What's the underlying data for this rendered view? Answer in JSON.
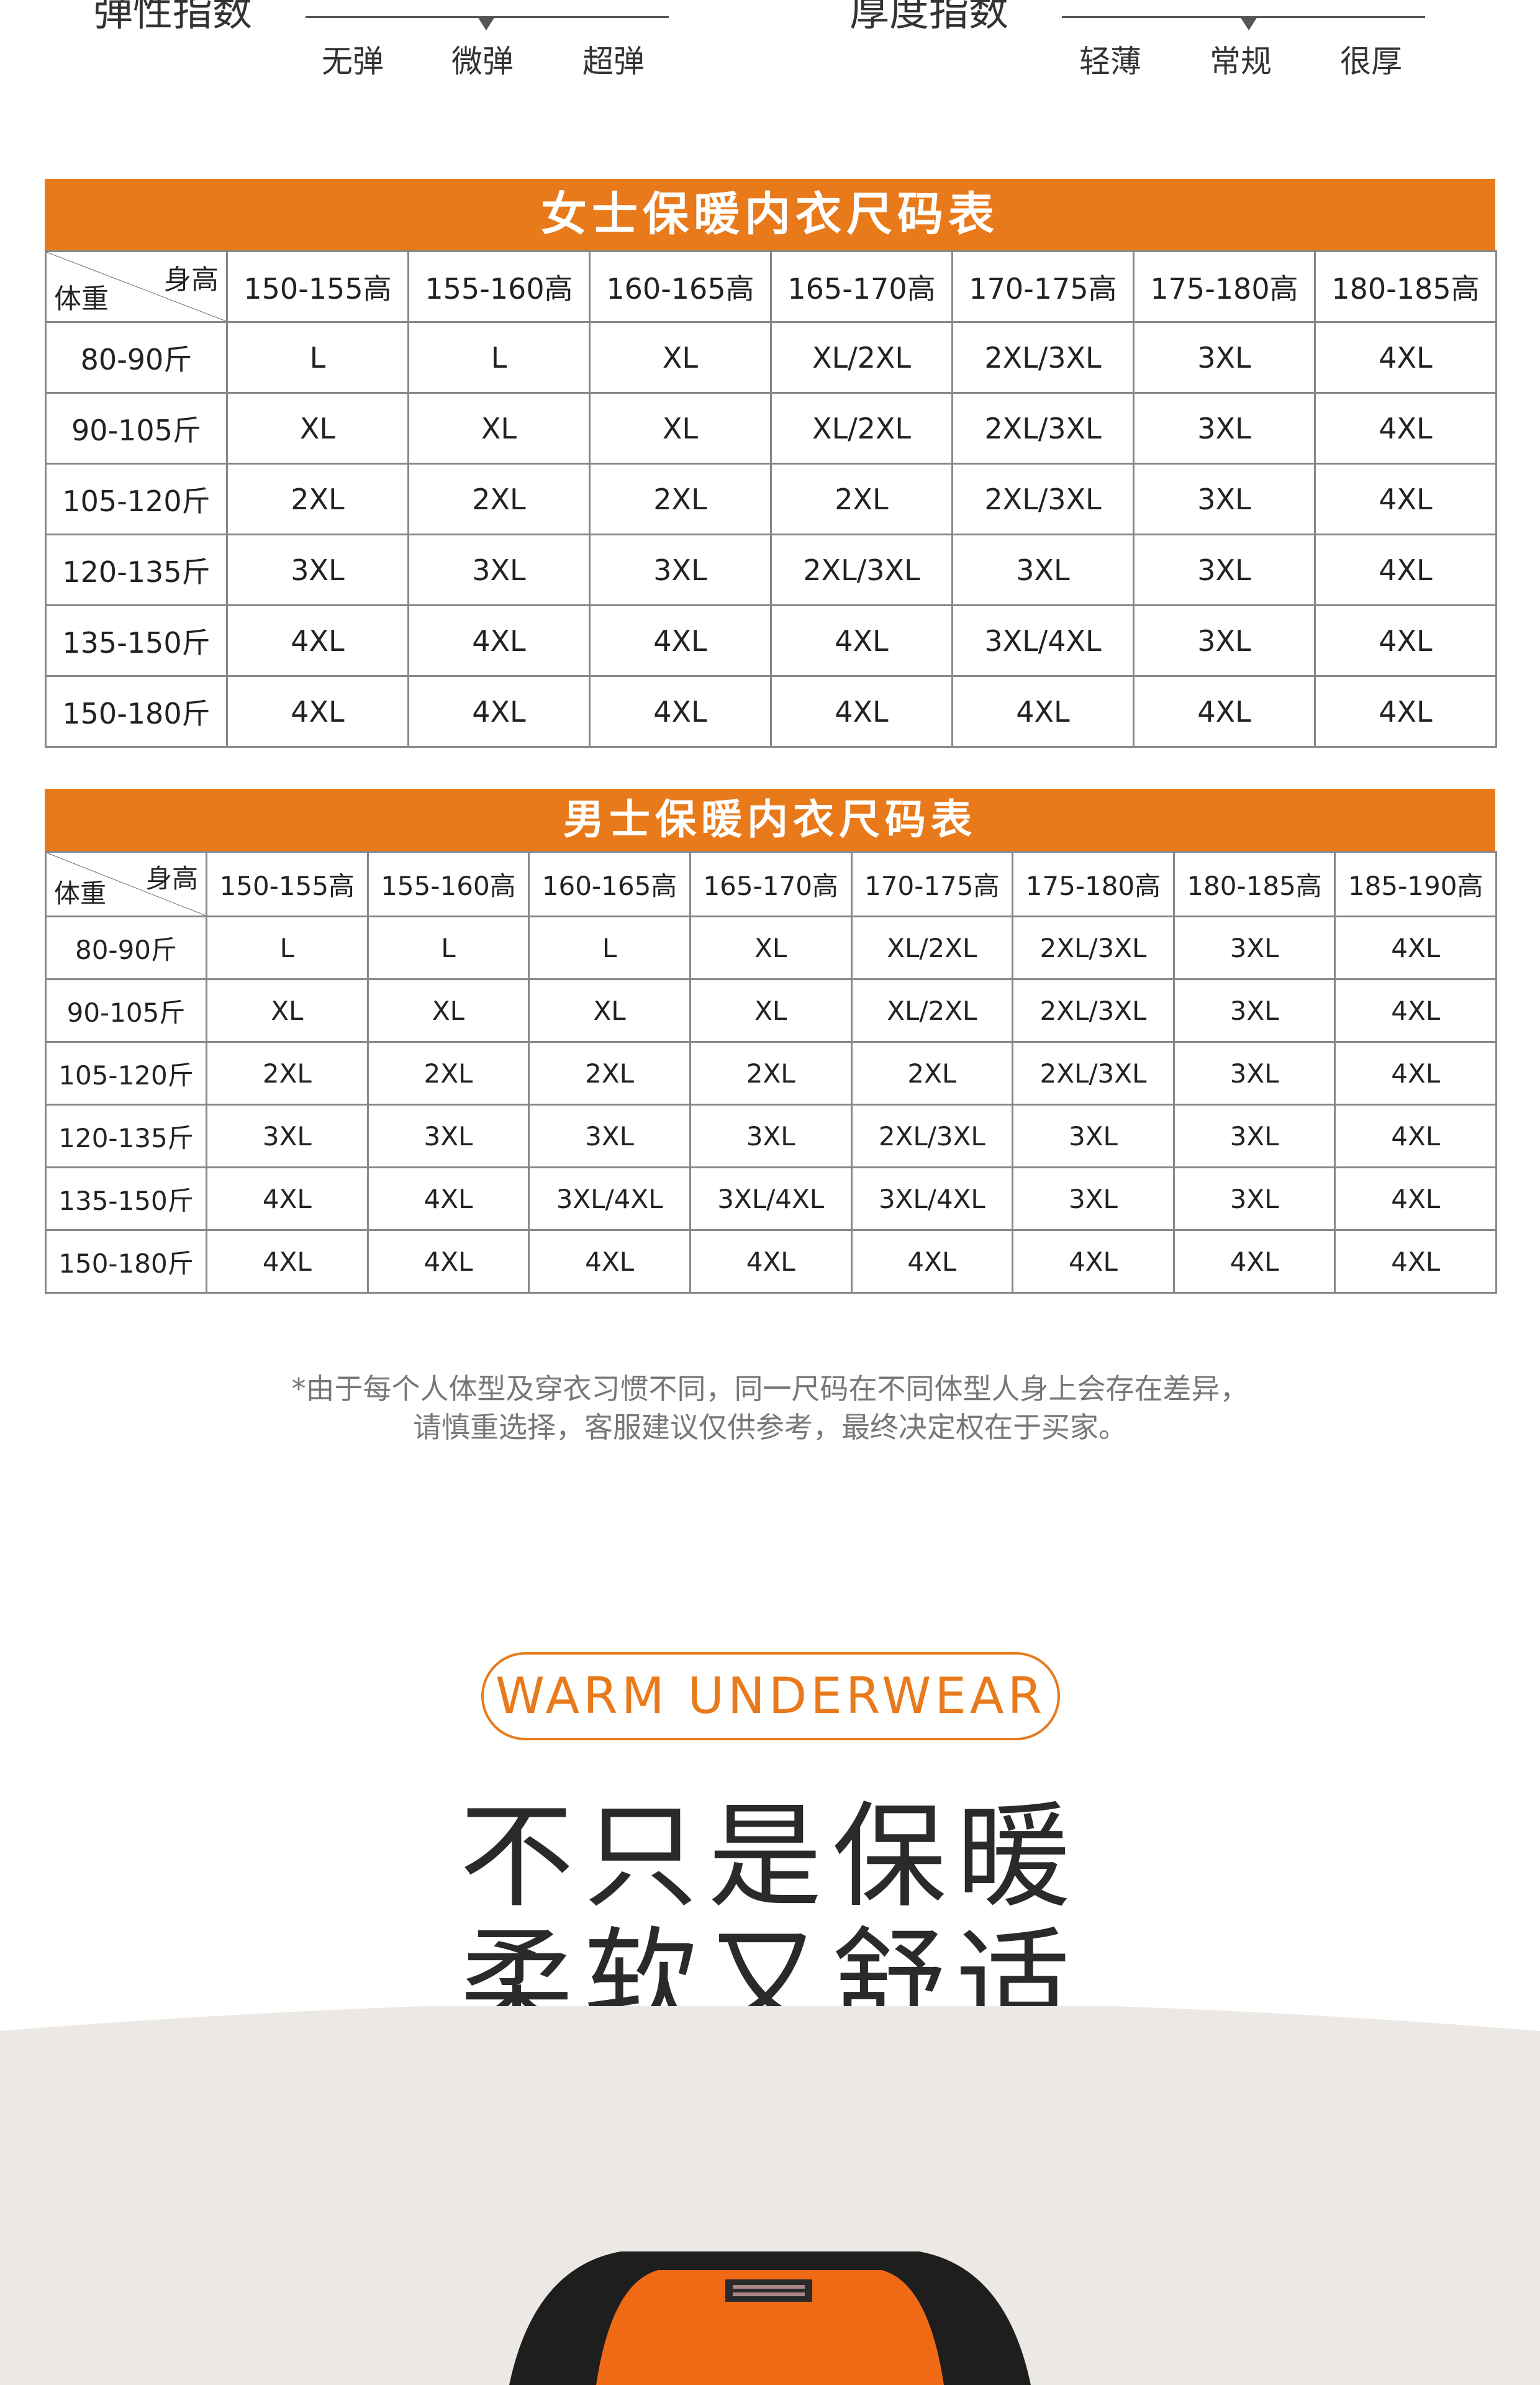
{
  "elasticity": {
    "title": "弹性指数",
    "options": [
      "无弹",
      "微弹",
      "超弹"
    ]
  },
  "thickness": {
    "title": "厚度指数",
    "options": [
      "轻薄",
      "常规",
      "很厚"
    ]
  },
  "women_table": {
    "title": "女士保暖内衣尺码表",
    "corner_height": "身高",
    "corner_weight": "体重",
    "columns": [
      "150-155高",
      "155-160高",
      "160-165高",
      "165-170高",
      "170-175高",
      "175-180高",
      "180-185高"
    ],
    "rows": [
      {
        "label": "80-90斤",
        "cells": [
          "L",
          "L",
          "XL",
          "XL/2XL",
          "2XL/3XL",
          "3XL",
          "4XL"
        ]
      },
      {
        "label": "90-105斤",
        "cells": [
          "XL",
          "XL",
          "XL",
          "XL/2XL",
          "2XL/3XL",
          "3XL",
          "4XL"
        ]
      },
      {
        "label": "105-120斤",
        "cells": [
          "2XL",
          "2XL",
          "2XL",
          "2XL",
          "2XL/3XL",
          "3XL",
          "4XL"
        ]
      },
      {
        "label": "120-135斤",
        "cells": [
          "3XL",
          "3XL",
          "3XL",
          "2XL/3XL",
          "3XL",
          "3XL",
          "4XL"
        ]
      },
      {
        "label": "135-150斤",
        "cells": [
          "4XL",
          "4XL",
          "4XL",
          "4XL",
          "3XL/4XL",
          "3XL",
          "4XL"
        ]
      },
      {
        "label": "150-180斤",
        "cells": [
          "4XL",
          "4XL",
          "4XL",
          "4XL",
          "4XL",
          "4XL",
          "4XL"
        ]
      }
    ]
  },
  "men_table": {
    "title": "男士保暖内衣尺码表",
    "corner_height": "身高",
    "corner_weight": "体重",
    "columns": [
      "150-155高",
      "155-160高",
      "160-165高",
      "165-170高",
      "170-175高",
      "175-180高",
      "180-185高",
      "185-190高"
    ],
    "rows": [
      {
        "label": "80-90斤",
        "cells": [
          "L",
          "L",
          "L",
          "XL",
          "XL/2XL",
          "2XL/3XL",
          "3XL",
          "4XL"
        ]
      },
      {
        "label": "90-105斤",
        "cells": [
          "XL",
          "XL",
          "XL",
          "XL",
          "XL/2XL",
          "2XL/3XL",
          "3XL",
          "4XL"
        ]
      },
      {
        "label": "105-120斤",
        "cells": [
          "2XL",
          "2XL",
          "2XL",
          "2XL",
          "2XL",
          "2XL/3XL",
          "3XL",
          "4XL"
        ]
      },
      {
        "label": "120-135斤",
        "cells": [
          "3XL",
          "3XL",
          "3XL",
          "3XL",
          "2XL/3XL",
          "3XL",
          "3XL",
          "4XL"
        ]
      },
      {
        "label": "135-150斤",
        "cells": [
          "4XL",
          "4XL",
          "3XL/4XL",
          "3XL/4XL",
          "3XL/4XL",
          "3XL",
          "3XL",
          "4XL"
        ]
      },
      {
        "label": "150-180斤",
        "cells": [
          "4XL",
          "4XL",
          "4XL",
          "4XL",
          "4XL",
          "4XL",
          "4XL",
          "4XL"
        ]
      }
    ]
  },
  "note": {
    "line1": "*由于每个人体型及穿衣习惯不同，同一尺码在不同体型人身上会存在差异，",
    "line2": "请慎重选择，客服建议仅供参考，最终决定权在于买家。"
  },
  "badge": "WARM  UNDERWEAR",
  "headline": {
    "line1": "不只是保暖",
    "line2": "柔软又舒适"
  },
  "colors": {
    "accent": "#e87a1c",
    "border": "#888888",
    "band": "#ece8e3"
  }
}
